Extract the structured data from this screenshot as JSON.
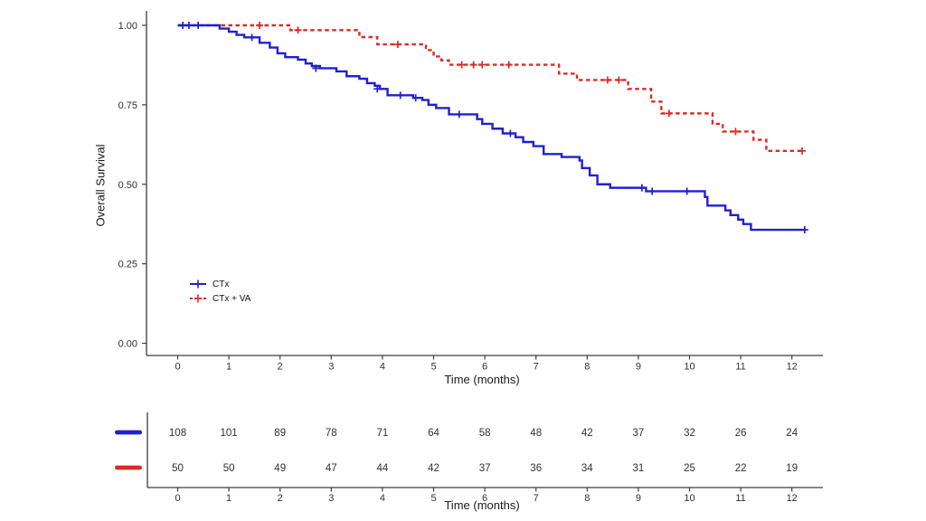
{
  "chart_data": {
    "type": "line",
    "subtype": "kaplan-meier-step",
    "title": "",
    "xlabel": "Time (months)",
    "ylabel": "Overall Survival",
    "x_ticks": [
      0,
      1,
      2,
      3,
      4,
      5,
      6,
      7,
      8,
      9,
      10,
      11,
      12
    ],
    "y_ticks": [
      "0.00",
      "0.25",
      "0.50",
      "0.75",
      "1.00"
    ],
    "xlim": [
      -0.6,
      12.6
    ],
    "ylim": [
      0,
      1.0
    ],
    "grid": false,
    "legend_position": "inside-left-middle",
    "axis_color": "#3c3c3c",
    "text_color": "#303030",
    "series": [
      {
        "name": "CTx",
        "color": "#2020CE",
        "line_style": "solid",
        "points": [
          [
            0,
            1.0
          ],
          [
            0.82,
            0.99
          ],
          [
            1.0,
            0.98
          ],
          [
            1.15,
            0.97
          ],
          [
            1.3,
            0.962
          ],
          [
            1.6,
            0.945
          ],
          [
            1.8,
            0.93
          ],
          [
            1.95,
            0.912
          ],
          [
            2.1,
            0.9
          ],
          [
            2.35,
            0.892
          ],
          [
            2.5,
            0.88
          ],
          [
            2.62,
            0.872
          ],
          [
            2.78,
            0.865
          ],
          [
            3.1,
            0.855
          ],
          [
            3.3,
            0.84
          ],
          [
            3.55,
            0.832
          ],
          [
            3.7,
            0.818
          ],
          [
            3.85,
            0.81
          ],
          [
            3.95,
            0.8
          ],
          [
            4.1,
            0.78
          ],
          [
            4.6,
            0.772
          ],
          [
            4.78,
            0.765
          ],
          [
            4.9,
            0.75
          ],
          [
            5.05,
            0.74
          ],
          [
            5.3,
            0.72
          ],
          [
            5.85,
            0.705
          ],
          [
            5.95,
            0.69
          ],
          [
            6.15,
            0.675
          ],
          [
            6.35,
            0.66
          ],
          [
            6.6,
            0.648
          ],
          [
            6.75,
            0.633
          ],
          [
            6.95,
            0.62
          ],
          [
            7.15,
            0.595
          ],
          [
            7.5,
            0.586
          ],
          [
            7.85,
            0.575
          ],
          [
            7.9,
            0.551
          ],
          [
            8.05,
            0.528
          ],
          [
            8.2,
            0.5
          ],
          [
            8.45,
            0.489
          ],
          [
            9.15,
            0.478
          ],
          [
            10.3,
            0.46
          ],
          [
            10.35,
            0.433
          ],
          [
            10.7,
            0.418
          ],
          [
            10.8,
            0.403
          ],
          [
            10.95,
            0.389
          ],
          [
            11.05,
            0.375
          ],
          [
            11.2,
            0.357
          ],
          [
            12.25,
            0.357
          ]
        ],
        "censor_marks": [
          [
            0.1,
            1.0
          ],
          [
            0.22,
            1.0
          ],
          [
            0.4,
            1.0
          ],
          [
            1.45,
            0.962
          ],
          [
            2.7,
            0.865
          ],
          [
            3.9,
            0.8
          ],
          [
            4.35,
            0.78
          ],
          [
            4.65,
            0.772
          ],
          [
            5.5,
            0.72
          ],
          [
            6.5,
            0.66
          ],
          [
            9.07,
            0.489
          ],
          [
            9.27,
            0.478
          ],
          [
            9.95,
            0.478
          ],
          [
            12.25,
            0.357
          ]
        ]
      },
      {
        "name": "CTx + VA",
        "color": "#DC2B26",
        "line_style": "dashed",
        "points": [
          [
            0,
            1.0
          ],
          [
            2.2,
            0.985
          ],
          [
            3.55,
            0.963
          ],
          [
            3.9,
            0.94
          ],
          [
            4.85,
            0.922
          ],
          [
            5.0,
            0.902
          ],
          [
            5.15,
            0.89
          ],
          [
            5.3,
            0.876
          ],
          [
            7.45,
            0.848
          ],
          [
            7.8,
            0.828
          ],
          [
            8.8,
            0.8
          ],
          [
            9.25,
            0.76
          ],
          [
            9.45,
            0.723
          ],
          [
            10.45,
            0.69
          ],
          [
            10.65,
            0.666
          ],
          [
            11.25,
            0.64
          ],
          [
            11.5,
            0.605
          ],
          [
            12.2,
            0.605
          ]
        ],
        "censor_marks": [
          [
            1.6,
            1.0
          ],
          [
            2.35,
            0.985
          ],
          [
            4.3,
            0.94
          ],
          [
            5.55,
            0.876
          ],
          [
            5.78,
            0.876
          ],
          [
            5.95,
            0.876
          ],
          [
            6.47,
            0.876
          ],
          [
            8.4,
            0.828
          ],
          [
            8.62,
            0.828
          ],
          [
            9.6,
            0.723
          ],
          [
            10.9,
            0.666
          ],
          [
            12.2,
            0.605
          ]
        ]
      }
    ],
    "risk_table": {
      "xlabel": "Time (months)",
      "times": [
        0,
        1,
        2,
        3,
        4,
        5,
        6,
        7,
        8,
        9,
        10,
        11,
        12
      ],
      "rows": [
        {
          "name": "CTx",
          "color": "#2020CE",
          "counts": [
            108,
            101,
            89,
            78,
            71,
            64,
            58,
            48,
            42,
            37,
            32,
            26,
            24
          ]
        },
        {
          "name": "CTx + VA",
          "color": "#DC2B26",
          "counts": [
            50,
            50,
            49,
            47,
            44,
            42,
            37,
            36,
            34,
            31,
            25,
            22,
            19
          ]
        }
      ]
    }
  }
}
